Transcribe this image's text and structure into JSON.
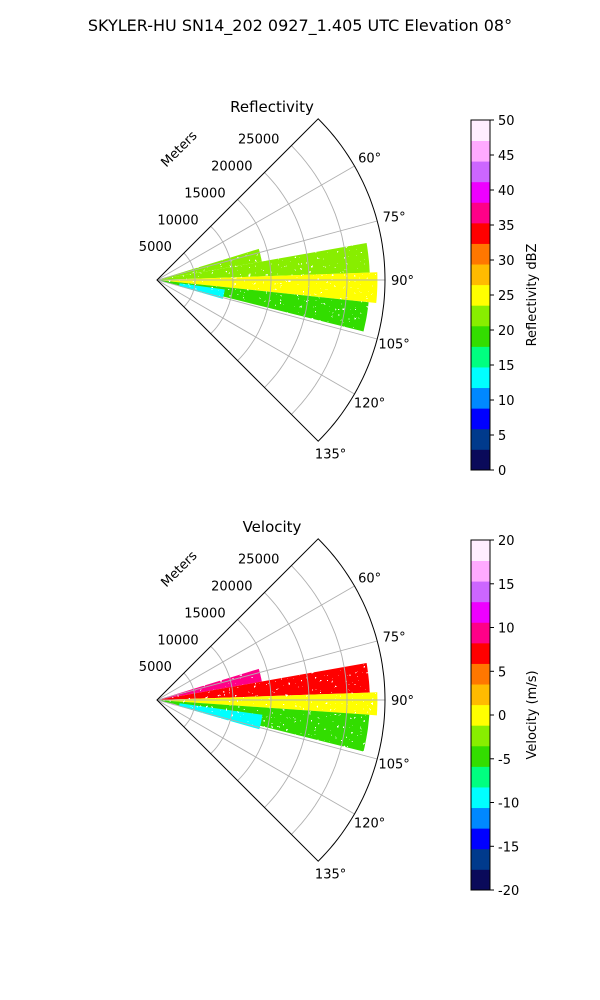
{
  "figure": {
    "title": "SKYLER-HU  SN14_202  0927_1.405 UTC Elevation 08°"
  },
  "panels": [
    {
      "title": "Reflectivity",
      "range_label": "Meters",
      "range_ticks": [
        "5000",
        "10000",
        "15000",
        "20000",
        "25000"
      ],
      "azimuth_ticks": [
        "60°",
        "75°",
        "90°",
        "105°",
        "120°",
        "135°"
      ],
      "colorbar": {
        "label": "Reflectivity dBZ",
        "min": 0,
        "max": 50,
        "ticks": [
          "0",
          "5",
          "10",
          "15",
          "20",
          "25",
          "30",
          "35",
          "40",
          "45",
          "50"
        ],
        "colors": [
          "#0a0a5a",
          "#003a8c",
          "#0000ff",
          "#0088ff",
          "#00ffff",
          "#00ff80",
          "#33dd00",
          "#88ee00",
          "#ffff00",
          "#ffbb00",
          "#ff7700",
          "#ff0000",
          "#ff0088",
          "#ee00ff",
          "#cc66ff",
          "#ffaaff",
          "#ffeeff"
        ]
      }
    },
    {
      "title": "Velocity",
      "range_label": "Meters",
      "range_ticks": [
        "5000",
        "10000",
        "15000",
        "20000",
        "25000"
      ],
      "azimuth_ticks": [
        "60°",
        "75°",
        "90°",
        "105°",
        "120°",
        "135°"
      ],
      "colorbar": {
        "label": "Velocity (m/s)",
        "min": -20,
        "max": 20,
        "ticks": [
          "-20",
          "-15",
          "-10",
          "-5",
          "0",
          "5",
          "10",
          "15",
          "20"
        ],
        "colors": [
          "#0a0a5a",
          "#003a8c",
          "#0000ff",
          "#0088ff",
          "#00ffff",
          "#00ff80",
          "#33dd00",
          "#88ee00",
          "#ffff00",
          "#ffbb00",
          "#ff7700",
          "#ff0000",
          "#ff0088",
          "#ee00ff",
          "#cc66ff",
          "#ffaaff",
          "#ffeeff"
        ]
      }
    }
  ],
  "chart_data": [
    {
      "type": "heatmap",
      "title": "Reflectivity",
      "projection": "polar-sector",
      "theta_range_deg": [
        45,
        135
      ],
      "r_range_m": [
        0,
        30000
      ],
      "r_ticks_m": [
        5000,
        10000,
        15000,
        20000,
        25000
      ],
      "theta_ticks_deg": [
        60,
        75,
        90,
        105,
        120,
        135
      ],
      "units": "dBZ",
      "value_range": [
        0,
        50
      ],
      "echo_regions": [
        {
          "theta": [
            73,
            80
          ],
          "r": [
            0,
            14000
          ],
          "value": 22
        },
        {
          "theta": [
            80,
            88
          ],
          "r": [
            0,
            28000
          ],
          "value": 21
        },
        {
          "theta": [
            88,
            96
          ],
          "r": [
            0,
            29000
          ],
          "value": 24
        },
        {
          "theta": [
            96,
            104
          ],
          "r": [
            0,
            28000
          ],
          "value": 20
        },
        {
          "theta": [
            98,
            106
          ],
          "r": [
            3000,
            9000
          ],
          "value": 14
        }
      ],
      "grid": true
    },
    {
      "type": "heatmap",
      "title": "Velocity",
      "projection": "polar-sector",
      "theta_range_deg": [
        45,
        135
      ],
      "r_range_m": [
        0,
        30000
      ],
      "r_ticks_m": [
        5000,
        10000,
        15000,
        20000,
        25000
      ],
      "theta_ticks_deg": [
        60,
        75,
        90,
        105,
        120,
        135
      ],
      "units": "m/s",
      "value_range": [
        -20,
        20
      ],
      "echo_regions": [
        {
          "theta": [
            73,
            80
          ],
          "r": [
            0,
            14000
          ],
          "value": 10
        },
        {
          "theta": [
            80,
            88
          ],
          "r": [
            0,
            28000
          ],
          "value": 6
        },
        {
          "theta": [
            88,
            94
          ],
          "r": [
            0,
            29000
          ],
          "value": 0
        },
        {
          "theta": [
            94,
            104
          ],
          "r": [
            0,
            28000
          ],
          "value": -5
        },
        {
          "theta": [
            98,
            106
          ],
          "r": [
            3000,
            14000
          ],
          "value": -9
        },
        {
          "theta": [
            103,
            107
          ],
          "r": [
            0,
            2500
          ],
          "value": 17
        }
      ],
      "grid": true
    }
  ]
}
